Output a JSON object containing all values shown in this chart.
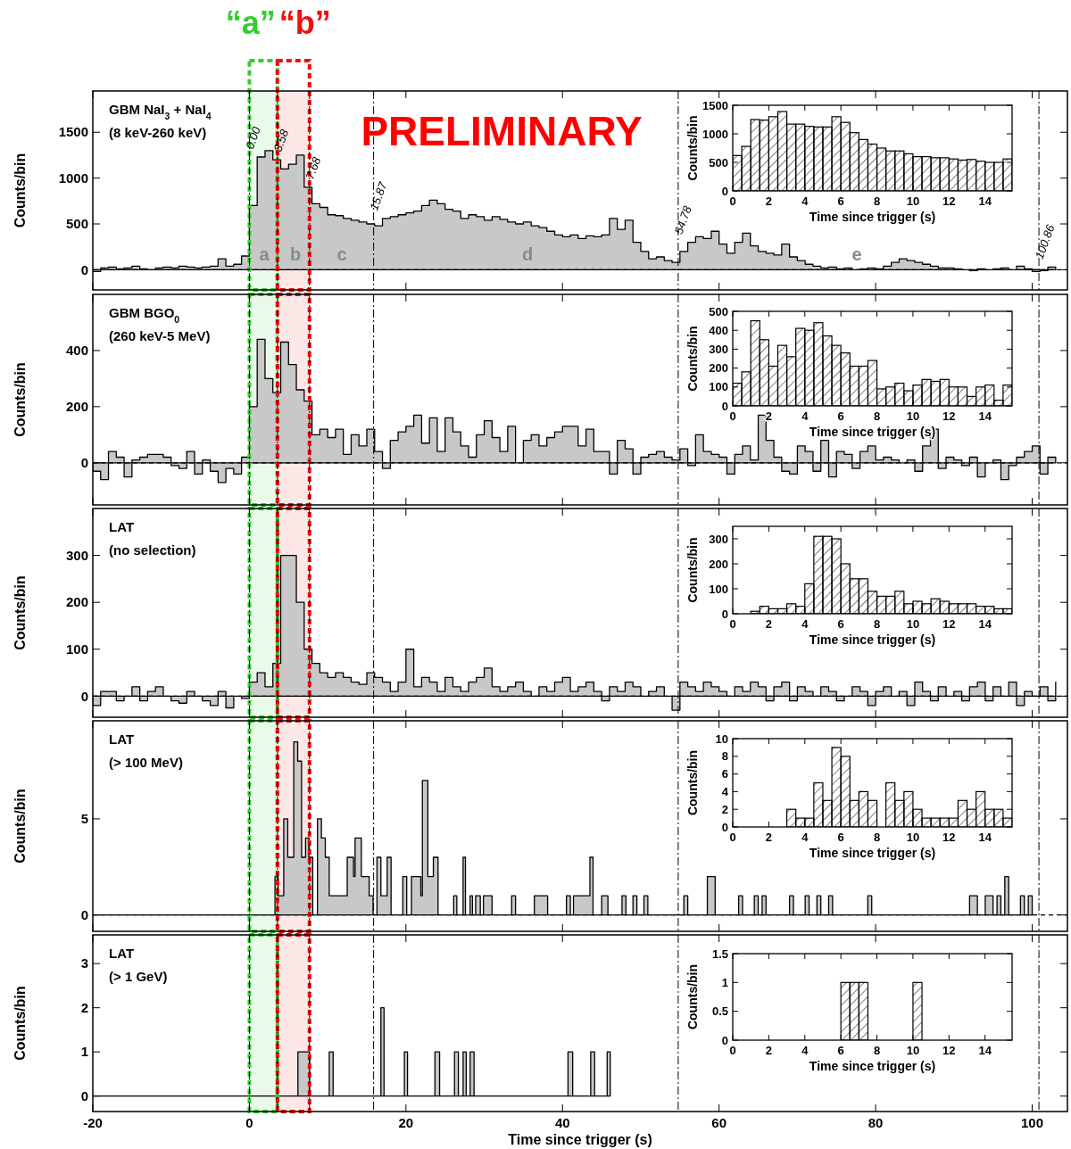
{
  "chart_data": [
    {
      "type": "area",
      "title": "GBM NaI$_{3}$ + NaI$_{4}$",
      "subtitle": "(8 keV-260 keV)",
      "ylabel": "Counts/bin",
      "xlim": [
        -20,
        104.5
      ],
      "ylim": [
        -220,
        1950
      ],
      "xticks": [
        -20,
        0,
        20,
        40,
        60,
        80,
        100
      ],
      "yticks": [
        0,
        500,
        1000,
        1500
      ],
      "tick_labels": "y",
      "series": [
        {
          "color": "#c8c8c8",
          "x": [
            -20,
            -19,
            -18,
            -17,
            -16,
            -15,
            -14,
            -13,
            -12,
            -11,
            -10,
            -9,
            -8,
            -7,
            -6,
            -5,
            -4,
            -3,
            -2,
            -1,
            0,
            1,
            2,
            3,
            4,
            5,
            6,
            7,
            8,
            9,
            10,
            11,
            12,
            13,
            14,
            15,
            16,
            17,
            18,
            19,
            20,
            21,
            22,
            23,
            24,
            25,
            26,
            27,
            28,
            29,
            30,
            31,
            32,
            33,
            34,
            35,
            36,
            37,
            38,
            39,
            40,
            41,
            42,
            43,
            44,
            45,
            46,
            47,
            48,
            49,
            50,
            51,
            52,
            53,
            54,
            55,
            56,
            57,
            58,
            59,
            60,
            61,
            62,
            63,
            64,
            65,
            66,
            67,
            68,
            69,
            70,
            71,
            72,
            73,
            74,
            75,
            76,
            77,
            78,
            79,
            80,
            81,
            82,
            83,
            84,
            85,
            86,
            87,
            88,
            89,
            90,
            91,
            92,
            93,
            94,
            95,
            96,
            97,
            98,
            99,
            100,
            101,
            102,
            103
          ],
          "values": [
            -20,
            20,
            30,
            10,
            20,
            40,
            10,
            0,
            20,
            30,
            20,
            40,
            30,
            20,
            30,
            40,
            120,
            40,
            60,
            150,
            700,
            1230,
            1300,
            1200,
            1100,
            1150,
            1250,
            900,
            720,
            680,
            600,
            590,
            560,
            540,
            520,
            500,
            480,
            560,
            580,
            600,
            620,
            640,
            700,
            760,
            720,
            660,
            640,
            560,
            600,
            580,
            540,
            580,
            550,
            520,
            500,
            520,
            480,
            460,
            420,
            380,
            360,
            380,
            340,
            370,
            360,
            380,
            560,
            440,
            540,
            300,
            200,
            120,
            140,
            100,
            80,
            200,
            300,
            360,
            340,
            420,
            280,
            180,
            300,
            400,
            260,
            200,
            180,
            160,
            280,
            140,
            100,
            60,
            40,
            20,
            30,
            10,
            20,
            0,
            10,
            20,
            10,
            40,
            80,
            120,
            100,
            80,
            60,
            40,
            20,
            20,
            10,
            0,
            -10,
            10,
            0,
            10,
            20,
            0,
            40,
            10,
            -20,
            -10,
            30,
            10
          ]
        }
      ],
      "ref_lines": [
        {
          "axis": "x",
          "value": 0,
          "label": "0.00",
          "line_style": "dashed"
        },
        {
          "axis": "x",
          "value": 3.58,
          "label": "3.58",
          "line_style": "dashed"
        },
        {
          "axis": "x",
          "value": 7.68,
          "label": "7.68",
          "line_style": "dashed"
        },
        {
          "axis": "x",
          "value": 15.87,
          "label": "15.87",
          "line_style": "dashed"
        },
        {
          "axis": "x",
          "value": 54.78,
          "label": "54.78",
          "line_style": "dashed"
        },
        {
          "axis": "x",
          "value": 100.86,
          "label": "100.86",
          "line_style": "dashed"
        },
        {
          "axis": "y",
          "value": 0,
          "line_style": "dashed"
        }
      ],
      "bands": [
        {
          "axis": "x",
          "from": 0,
          "to": 3.58,
          "label": "“a”",
          "color": "#33cc33"
        },
        {
          "axis": "x",
          "from": 3.58,
          "to": 7.68,
          "label": "“b”",
          "color": "#ee1111"
        }
      ],
      "annotations": [
        "PRELIMINARY",
        "a",
        "b",
        "c",
        "d",
        "e"
      ]
    },
    {
      "type": "histogram",
      "xlabel": "Time since trigger (s)",
      "ylabel": "Counts/bin",
      "xlim": [
        0,
        15.5
      ],
      "ylim": [
        0,
        1500
      ],
      "xticks": [
        0,
        2,
        4,
        6,
        8,
        10,
        12,
        14
      ],
      "yticks": [
        0,
        500,
        1000,
        1500
      ],
      "color": "#000000",
      "bins": [
        0,
        0.5,
        1,
        1.5,
        2,
        2.5,
        3,
        3.5,
        4,
        4.5,
        5,
        5.5,
        6,
        6.5,
        7,
        7.5,
        8,
        8.5,
        9,
        9.5,
        10,
        10.5,
        11,
        11.5,
        12,
        12.5,
        13,
        13.5,
        14,
        14.5,
        15,
        15.5
      ],
      "values": [
        620,
        780,
        1250,
        1240,
        1300,
        1390,
        1170,
        1170,
        1130,
        1120,
        1120,
        1300,
        1200,
        1020,
        900,
        820,
        750,
        700,
        700,
        650,
        600,
        600,
        580,
        580,
        560,
        540,
        550,
        520,
        500,
        500,
        560
      ]
    },
    {
      "type": "area",
      "title": "GBM BGO$_{0}$",
      "subtitle": "(260 keV-5 MeV)",
      "ylabel": "Counts/bin",
      "xlim": [
        -20,
        104.5
      ],
      "ylim": [
        -150,
        600
      ],
      "xticks": [
        -20,
        0,
        20,
        40,
        60,
        80,
        100
      ],
      "yticks": [
        0,
        200,
        400
      ],
      "tick_labels": "y",
      "series": [
        {
          "color": "#c8c8c8",
          "x": [
            -20,
            -19,
            -18,
            -17,
            -16,
            -15,
            -14,
            -13,
            -12,
            -11,
            -10,
            -9,
            -8,
            -7,
            -6,
            -5,
            -4,
            -3,
            -2,
            -1,
            0,
            1,
            2,
            3,
            4,
            5,
            6,
            7,
            8,
            9,
            10,
            11,
            12,
            13,
            14,
            15,
            16,
            17,
            18,
            19,
            20,
            21,
            22,
            23,
            24,
            25,
            26,
            27,
            28,
            29,
            30,
            31,
            32,
            33,
            34,
            35,
            36,
            37,
            38,
            39,
            40,
            41,
            42,
            43,
            44,
            45,
            46,
            47,
            48,
            49,
            50,
            51,
            52,
            53,
            54,
            55,
            56,
            57,
            58,
            59,
            60,
            61,
            62,
            63,
            64,
            65,
            66,
            67,
            68,
            69,
            70,
            71,
            72,
            73,
            74,
            75,
            76,
            77,
            78,
            79,
            80,
            81,
            82,
            83,
            84,
            85,
            86,
            87,
            88,
            89,
            90,
            91,
            92,
            93,
            94,
            95,
            96,
            97,
            98,
            99,
            100,
            101,
            102,
            103
          ],
          "values": [
            -30,
            -60,
            40,
            20,
            -50,
            10,
            20,
            30,
            30,
            20,
            -10,
            -20,
            40,
            -40,
            10,
            -30,
            -70,
            -20,
            -40,
            20,
            200,
            440,
            300,
            250,
            430,
            350,
            260,
            220,
            100,
            120,
            90,
            120,
            30,
            100,
            60,
            120,
            40,
            -20,
            80,
            110,
            130,
            170,
            70,
            160,
            40,
            160,
            110,
            60,
            20,
            100,
            150,
            90,
            40,
            130,
            0,
            80,
            100,
            60,
            90,
            110,
            130,
            130,
            60,
            120,
            40,
            40,
            -40,
            80,
            50,
            -40,
            20,
            30,
            40,
            20,
            10,
            50,
            -10,
            100,
            40,
            30,
            20,
            -40,
            30,
            60,
            10,
            170,
            80,
            20,
            -30,
            -40,
            60,
            40,
            -30,
            80,
            -50,
            40,
            30,
            -20,
            40,
            60,
            10,
            20,
            10,
            0,
            10,
            -30,
            60,
            120,
            -20,
            20,
            10,
            -10,
            20,
            -50,
            0,
            10,
            -60,
            -10,
            20,
            40,
            60,
            -40,
            20,
            10
          ]
        }
      ],
      "ref_lines": [
        {
          "axis": "x",
          "value": 0,
          "line_style": "dashed"
        },
        {
          "axis": "x",
          "value": 3.58,
          "line_style": "dashed"
        },
        {
          "axis": "x",
          "value": 7.68,
          "line_style": "dashed"
        },
        {
          "axis": "x",
          "value": 15.87,
          "line_style": "dashed"
        },
        {
          "axis": "x",
          "value": 54.78,
          "line_style": "dashed"
        },
        {
          "axis": "x",
          "value": 100.86,
          "line_style": "dashed"
        },
        {
          "axis": "y",
          "value": 0,
          "line_style": "dashed"
        }
      ],
      "bands": [
        {
          "axis": "x",
          "from": 0,
          "to": 3.58,
          "color": "#33cc33"
        },
        {
          "axis": "x",
          "from": 3.58,
          "to": 7.68,
          "color": "#ee1111"
        }
      ]
    },
    {
      "type": "histogram",
      "xlabel": "Time since trigger (s)",
      "ylabel": "Counts/bin",
      "xlim": [
        0,
        15.5
      ],
      "ylim": [
        0,
        500
      ],
      "xticks": [
        0,
        2,
        4,
        6,
        8,
        10,
        12,
        14
      ],
      "yticks": [
        0,
        100,
        200,
        300,
        400,
        500
      ],
      "color": "#000000",
      "bins": [
        0,
        0.5,
        1,
        1.5,
        2,
        2.5,
        3,
        3.5,
        4,
        4.5,
        5,
        5.5,
        6,
        6.5,
        7,
        7.5,
        8,
        8.5,
        9,
        9.5,
        10,
        10.5,
        11,
        11.5,
        12,
        12.5,
        13,
        13.5,
        14,
        14.5,
        15,
        15.5
      ],
      "values": [
        120,
        180,
        450,
        350,
        210,
        320,
        260,
        410,
        400,
        440,
        370,
        320,
        280,
        210,
        210,
        240,
        90,
        100,
        120,
        80,
        110,
        140,
        130,
        140,
        100,
        100,
        50,
        100,
        110,
        30,
        110
      ]
    },
    {
      "type": "area",
      "title": "LAT",
      "subtitle": "(no selection)",
      "ylabel": "Counts/bin",
      "xlim": [
        -20,
        104.5
      ],
      "ylim": [
        -45,
        400
      ],
      "xticks": [
        -20,
        0,
        20,
        40,
        60,
        80,
        100
      ],
      "yticks": [
        0,
        100,
        200,
        300
      ],
      "tick_labels": "y",
      "series": [
        {
          "color": "#c8c8c8",
          "x": [
            -20,
            -19,
            -18,
            -17,
            -16,
            -15,
            -14,
            -13,
            -12,
            -11,
            -10,
            -9,
            -8,
            -7,
            -6,
            -5,
            -4,
            -3,
            -2,
            -1,
            0,
            1,
            2,
            3,
            4,
            5,
            6,
            7,
            8,
            9,
            10,
            11,
            12,
            13,
            14,
            15,
            16,
            17,
            18,
            19,
            20,
            21,
            22,
            23,
            24,
            25,
            26,
            27,
            28,
            29,
            30,
            31,
            32,
            33,
            34,
            35,
            36,
            37,
            38,
            39,
            40,
            41,
            42,
            43,
            44,
            45,
            46,
            47,
            48,
            49,
            50,
            51,
            52,
            53,
            54,
            55,
            56,
            57,
            58,
            59,
            60,
            61,
            62,
            63,
            64,
            65,
            66,
            67,
            68,
            69,
            70,
            71,
            72,
            73,
            74,
            75,
            76,
            77,
            78,
            79,
            80,
            81,
            82,
            83,
            84,
            85,
            86,
            87,
            88,
            89,
            90,
            91,
            92,
            93,
            94,
            95,
            96,
            97,
            98,
            99,
            100,
            101,
            102,
            103
          ],
          "values": [
            -20,
            10,
            10,
            -10,
            0,
            20,
            -10,
            10,
            20,
            0,
            -10,
            -15,
            10,
            0,
            -10,
            -20,
            10,
            -25,
            0,
            -5,
            30,
            50,
            20,
            70,
            300,
            300,
            200,
            100,
            70,
            50,
            40,
            50,
            40,
            30,
            25,
            50,
            40,
            30,
            10,
            30,
            100,
            20,
            40,
            30,
            10,
            40,
            20,
            10,
            30,
            40,
            60,
            20,
            10,
            20,
            30,
            10,
            0,
            20,
            10,
            30,
            40,
            10,
            20,
            30,
            10,
            -10,
            20,
            10,
            30,
            20,
            0,
            10,
            20,
            0,
            -30,
            30,
            20,
            10,
            30,
            20,
            10,
            0,
            20,
            10,
            30,
            20,
            -10,
            20,
            30,
            -10,
            20,
            10,
            0,
            20,
            10,
            -10,
            0,
            20,
            10,
            -20,
            10,
            20,
            0,
            10,
            -20,
            30,
            10,
            -10,
            20,
            0,
            10,
            -10,
            20,
            30,
            -10,
            20,
            0,
            30,
            -20,
            10,
            0,
            20,
            -10,
            30
          ]
        }
      ],
      "ref_lines": [
        {
          "axis": "x",
          "value": 0,
          "line_style": "dashed"
        },
        {
          "axis": "x",
          "value": 3.58,
          "line_style": "dashed"
        },
        {
          "axis": "x",
          "value": 7.68,
          "line_style": "dashed"
        },
        {
          "axis": "x",
          "value": 15.87,
          "line_style": "dashed"
        },
        {
          "axis": "x",
          "value": 54.78,
          "line_style": "dashed"
        },
        {
          "axis": "x",
          "value": 100.86,
          "line_style": "dashed"
        },
        {
          "axis": "y",
          "value": 0,
          "line_style": "dashed"
        }
      ],
      "bands": [
        {
          "axis": "x",
          "from": 0,
          "to": 3.58,
          "color": "#33cc33"
        },
        {
          "axis": "x",
          "from": 3.58,
          "to": 7.68,
          "color": "#ee1111"
        }
      ]
    },
    {
      "type": "histogram",
      "xlabel": "Time since trigger (s)",
      "ylabel": "Counts/bin",
      "xlim": [
        0,
        15.5
      ],
      "ylim": [
        0,
        350
      ],
      "xticks": [
        0,
        2,
        4,
        6,
        8,
        10,
        12,
        14
      ],
      "yticks": [
        0,
        100,
        200,
        300
      ],
      "color": "#000000",
      "bins": [
        0,
        0.5,
        1,
        1.5,
        2,
        2.5,
        3,
        3.5,
        4,
        4.5,
        5,
        5.5,
        6,
        6.5,
        7,
        7.5,
        8,
        8.5,
        9,
        9.5,
        10,
        10.5,
        11,
        11.5,
        12,
        12.5,
        13,
        13.5,
        14,
        14.5,
        15,
        15.5
      ],
      "values": [
        0,
        0,
        10,
        30,
        20,
        20,
        40,
        30,
        120,
        310,
        310,
        300,
        200,
        140,
        140,
        90,
        70,
        70,
        90,
        40,
        50,
        40,
        60,
        50,
        40,
        40,
        40,
        30,
        30,
        20,
        20
      ]
    },
    {
      "type": "area",
      "title": "LAT",
      "subtitle": "(> 100 MeV)",
      "ylabel": "Counts/bin",
      "xlim": [
        -20,
        104.5
      ],
      "ylim": [
        -0.85,
        10.1
      ],
      "xticks": [
        -20,
        0,
        20,
        40,
        60,
        80,
        100
      ],
      "yticks": [
        0,
        5
      ],
      "tick_labels": "y",
      "series": [
        {
          "color": "#c8c8c8",
          "x": [
            -20,
            3.27,
            3.67,
            4.39,
            4.9,
            5.67,
            6.17,
            6.67,
            7.18,
            7.59,
            8.1,
            8.7,
            9.2,
            9.7,
            10.2,
            12.5,
            13.3,
            13.5,
            14.3,
            15.3,
            15.8,
            16.3,
            16.8,
            17.6,
            18.1,
            19.6,
            20.1,
            20.7,
            21.9,
            22.1,
            22.8,
            23.5,
            24.1,
            26.1,
            26.5,
            27.3,
            27.6,
            28.2,
            28.5,
            28.9,
            29.5,
            29.9,
            31.0,
            33.5,
            34.0,
            36.4,
            38.1,
            40.5,
            41.0,
            41.4,
            43.5,
            43.9,
            45.0,
            45.8,
            47.6,
            48.1,
            49.0,
            49.5,
            50.4,
            50.9,
            55.5,
            56.0,
            58.5,
            59.5,
            62.5,
            63.0,
            64.5,
            65.0,
            65.5,
            66.0,
            69.0,
            69.5,
            71.0,
            71.5,
            72.5,
            73.0,
            74.0,
            74.5,
            79.0,
            79.5,
            92.0,
            93.0,
            94.0,
            95.0,
            95.5,
            96.0,
            96.5,
            97.0,
            98.5,
            99.0,
            99.5,
            100.0
          ],
          "values": [
            0,
            2,
            1,
            5,
            3,
            9,
            8,
            3,
            4,
            3,
            0,
            5,
            4,
            3,
            1,
            3,
            2,
            4,
            2,
            1,
            0,
            3,
            1,
            3,
            0,
            2,
            0,
            2,
            1,
            7,
            2,
            3,
            0,
            1,
            0,
            3,
            0,
            1,
            0,
            1,
            0,
            1,
            0,
            1,
            0,
            1,
            0,
            1,
            0,
            1,
            3,
            0,
            1,
            0,
            1,
            0,
            1,
            0,
            1,
            0,
            1,
            0,
            2,
            0,
            1,
            0,
            1,
            0,
            1,
            0,
            1,
            0,
            1,
            0,
            1,
            0,
            1,
            0,
            1,
            0,
            1,
            0,
            1,
            0,
            1,
            0,
            2,
            0,
            1,
            0,
            1,
            0
          ]
        }
      ],
      "ref_lines": [
        {
          "axis": "x",
          "value": 0,
          "line_style": "dashed"
        },
        {
          "axis": "x",
          "value": 3.58,
          "line_style": "dashed"
        },
        {
          "axis": "x",
          "value": 7.68,
          "line_style": "dashed"
        },
        {
          "axis": "x",
          "value": 15.87,
          "line_style": "dashed"
        },
        {
          "axis": "x",
          "value": 54.78,
          "line_style": "dashed"
        },
        {
          "axis": "x",
          "value": 100.86,
          "line_style": "dashed"
        },
        {
          "axis": "y",
          "value": 0,
          "line_style": "dashed"
        }
      ],
      "bands": [
        {
          "axis": "x",
          "from": 0,
          "to": 3.58,
          "color": "#33cc33"
        },
        {
          "axis": "x",
          "from": 3.58,
          "to": 7.68,
          "color": "#ee1111"
        }
      ]
    },
    {
      "type": "histogram",
      "xlabel": "Time since trigger (s)",
      "ylabel": "Counts/bin",
      "xlim": [
        0,
        15.5
      ],
      "ylim": [
        0,
        10
      ],
      "xticks": [
        0,
        2,
        4,
        6,
        8,
        10,
        12,
        14
      ],
      "yticks": [
        0,
        2,
        4,
        6,
        8,
        10
      ],
      "color": "#000000",
      "bins": [
        0,
        0.5,
        1,
        1.5,
        2,
        2.5,
        3,
        3.5,
        4,
        4.5,
        5,
        5.5,
        6,
        6.5,
        7,
        7.5,
        8,
        8.5,
        9,
        9.5,
        10,
        10.5,
        11,
        11.5,
        12,
        12.5,
        13,
        13.5,
        14,
        14.5,
        15,
        15.5
      ],
      "values": [
        0,
        0,
        0,
        0,
        0,
        0,
        2,
        1,
        1,
        5,
        3,
        9,
        8,
        3,
        4,
        3,
        0,
        5,
        3,
        4,
        2,
        1,
        1,
        1,
        1,
        3,
        2,
        4,
        2,
        2,
        1
      ]
    },
    {
      "type": "area",
      "title": "LAT",
      "subtitle": "(> 1 GeV)",
      "xlabel": "Time since trigger (s)",
      "ylabel": "Counts/bin",
      "xlim": [
        -20,
        104.5
      ],
      "ylim": [
        -0.35,
        3.65
      ],
      "xticks": [
        -20,
        0,
        20,
        40,
        60,
        80,
        100
      ],
      "yticks": [
        0,
        1,
        2,
        3
      ],
      "series": [
        {
          "color": "#c8c8c8",
          "x": [
            -20,
            6.2,
            7.7,
            10.2,
            10.7,
            16.8,
            17.2,
            19.8,
            20.2,
            23.7,
            24.3,
            26.2,
            26.7,
            27.3,
            27.7,
            28.2,
            28.7,
            40.7,
            41.3,
            43.6,
            44.1,
            45.7,
            46.1
          ],
          "values": [
            0,
            1,
            0,
            1,
            0,
            2,
            0,
            1,
            0,
            1,
            0,
            1,
            0,
            1,
            0,
            1,
            0,
            1,
            0,
            1,
            0,
            1,
            0
          ]
        }
      ],
      "ref_lines": [
        {
          "axis": "x",
          "value": 0,
          "line_style": "dashed"
        },
        {
          "axis": "x",
          "value": 3.58,
          "line_style": "dashed"
        },
        {
          "axis": "x",
          "value": 7.68,
          "line_style": "dashed"
        },
        {
          "axis": "x",
          "value": 15.87,
          "line_style": "dashed"
        },
        {
          "axis": "x",
          "value": 54.78,
          "line_style": "dashed"
        },
        {
          "axis": "x",
          "value": 100.86,
          "line_style": "dashed"
        }
      ],
      "bands": [
        {
          "axis": "x",
          "from": 0,
          "to": 3.58,
          "color": "#33cc33"
        },
        {
          "axis": "x",
          "from": 3.58,
          "to": 7.68,
          "color": "#ee1111"
        }
      ]
    },
    {
      "type": "histogram",
      "xlabel": "Time since trigger (s)",
      "ylabel": "Counts/bin",
      "xlim": [
        0,
        15.5
      ],
      "ylim": [
        0,
        1.5
      ],
      "xticks": [
        0,
        2,
        4,
        6,
        8,
        10,
        12,
        14
      ],
      "yticks": [
        0,
        0.5,
        1,
        1.5
      ],
      "color": "#000000",
      "bins": [
        0,
        0.5,
        1,
        1.5,
        2,
        2.5,
        3,
        3.5,
        4,
        4.5,
        5,
        5.5,
        6,
        6.5,
        7,
        7.5,
        8,
        8.5,
        9,
        9.5,
        10,
        10.5,
        11,
        11.5,
        12,
        12.5,
        13,
        13.5,
        14,
        14.5,
        15,
        15.5
      ],
      "values": [
        0,
        0,
        0,
        0,
        0,
        0,
        0,
        0,
        0,
        0,
        0,
        0,
        1,
        1,
        1,
        0,
        0,
        0,
        0,
        0,
        1,
        0,
        0,
        0,
        0,
        0,
        0,
        0,
        0,
        0,
        0
      ]
    }
  ]
}
